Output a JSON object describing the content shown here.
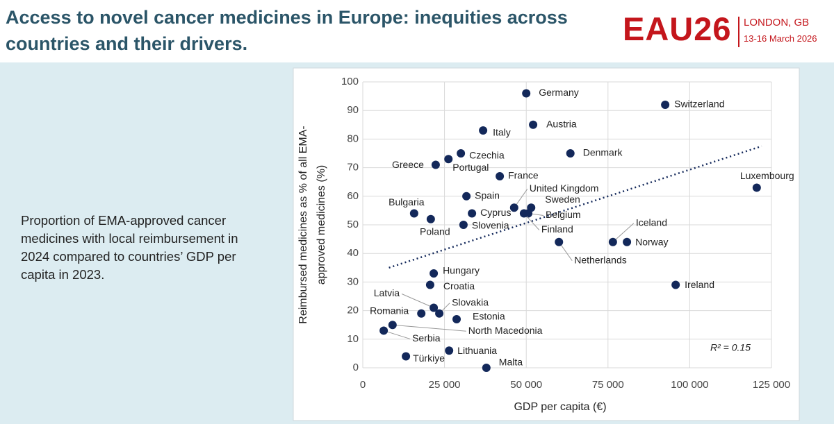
{
  "header": {
    "title": "Access to novel cancer medicines in Europe: inequities across countries and their drivers.",
    "logo": {
      "name": "EAU26",
      "city": "LONDON, GB",
      "dates": "13-16 March 2026"
    }
  },
  "description": "Proportion of EMA-approved cancer medicines with local reimbursement in 2024 compared to countries’ GDP per capita in 2023.",
  "chart_data": {
    "type": "scatter",
    "xlabel": "GDP per capita (€)",
    "ylabel": [
      "Reimbursed medicines as % of all EMA-",
      "approved medicines (%)"
    ],
    "annotation": "R² = 0.15",
    "color": "#13285a",
    "labels": [
      "Germany",
      "Switzerland",
      "Austria",
      "Italy",
      "Denmark",
      "Czechia",
      "Portugal",
      "Greece",
      "France",
      "Luxembourg",
      "Spain",
      "United Kingdom",
      "Sweden",
      "Belgium",
      "Finland",
      "Cyprus",
      "Bulgaria",
      "Poland",
      "Slovenia",
      "Iceland",
      "Norway",
      "Netherlands",
      "Hungary",
      "Croatia",
      "Ireland",
      "Latvia",
      "Slovakia",
      "Romania",
      "Estonia",
      "North Macedonia",
      "Serbia",
      "Lithuania",
      "Türkiye",
      "Malta"
    ],
    "x": [
      50000,
      92500,
      52100,
      36800,
      63500,
      30000,
      26200,
      22300,
      41900,
      120500,
      31700,
      46300,
      51500,
      50600,
      49300,
      33400,
      15700,
      20800,
      30800,
      76500,
      80800,
      60000,
      21700,
      20600,
      95700,
      21700,
      23400,
      17900,
      28700,
      9100,
      6400,
      26400,
      13200,
      37800
    ],
    "values": [
      96,
      92,
      85,
      83,
      75,
      75,
      73,
      71,
      67,
      63,
      60,
      56,
      56,
      54,
      54,
      54,
      54,
      52,
      50,
      44,
      44,
      44,
      33,
      29,
      29,
      21,
      19,
      19,
      17,
      15,
      13,
      6,
      4,
      0
    ],
    "trendline": {
      "x": [
        8000,
        122000
      ],
      "values": [
        35,
        77.5
      ]
    },
    "xlim": [
      0,
      125000
    ],
    "ylim": [
      0,
      100
    ],
    "xticks": [
      0,
      {
        "value": 25000,
        "label": "25 000"
      },
      {
        "value": 50000,
        "label": "50 000"
      },
      {
        "value": 75000,
        "label": "75 000"
      },
      {
        "value": 100000,
        "label": "100 000"
      },
      {
        "value": 125000,
        "label": "125 000"
      }
    ],
    "yticks": [
      0,
      10,
      20,
      30,
      40,
      50,
      60,
      70,
      80,
      90,
      100
    ],
    "grid": true
  }
}
